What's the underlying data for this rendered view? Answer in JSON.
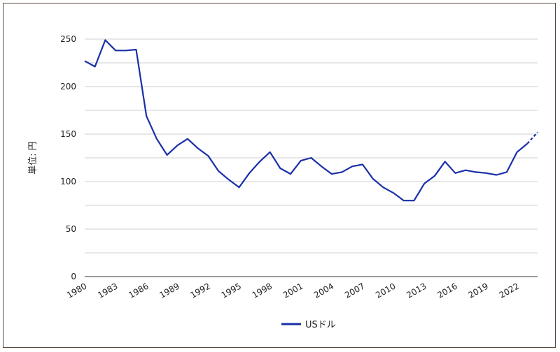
{
  "chart_data": {
    "type": "line",
    "title": "",
    "xlabel": "",
    "ylabel": "単位: 円",
    "ylim": [
      0,
      250
    ],
    "y_ticks": [
      0,
      50,
      100,
      150,
      200,
      250
    ],
    "y_tick_labels": [
      "0",
      "50",
      "100",
      "150",
      "200",
      "250"
    ],
    "x_ticks": [
      1980,
      1983,
      1986,
      1989,
      1992,
      1995,
      1998,
      2001,
      2004,
      2007,
      2010,
      2013,
      2016,
      2019,
      2022
    ],
    "x_tick_labels": [
      "1980",
      "1983",
      "1986",
      "1989",
      "1992",
      "1995",
      "1998",
      "2001",
      "2004",
      "2007",
      "2010",
      "2013",
      "2016",
      "2019",
      "2022"
    ],
    "grid": true,
    "legend_position": "bottom",
    "series": [
      {
        "name": "USドル",
        "color": "#1a2fa8",
        "x": [
          1980,
          1981,
          1982,
          1983,
          1984,
          1985,
          1986,
          1987,
          1988,
          1989,
          1990,
          1991,
          1992,
          1993,
          1994,
          1995,
          1996,
          1997,
          1998,
          1999,
          2000,
          2001,
          2002,
          2003,
          2004,
          2005,
          2006,
          2007,
          2008,
          2009,
          2010,
          2011,
          2012,
          2013,
          2014,
          2015,
          2016,
          2017,
          2018,
          2019,
          2020,
          2021,
          2022,
          2023,
          2024
        ],
        "values": [
          227,
          221,
          249,
          238,
          238,
          239,
          169,
          145,
          128,
          138,
          145,
          135,
          127,
          111,
          102,
          94,
          109,
          121,
          131,
          114,
          108,
          122,
          125,
          116,
          108,
          110,
          116,
          118,
          103,
          94,
          88,
          80,
          80,
          98,
          106,
          121,
          109,
          112,
          110,
          109,
          107,
          110,
          131,
          140,
          152
        ]
      }
    ]
  }
}
